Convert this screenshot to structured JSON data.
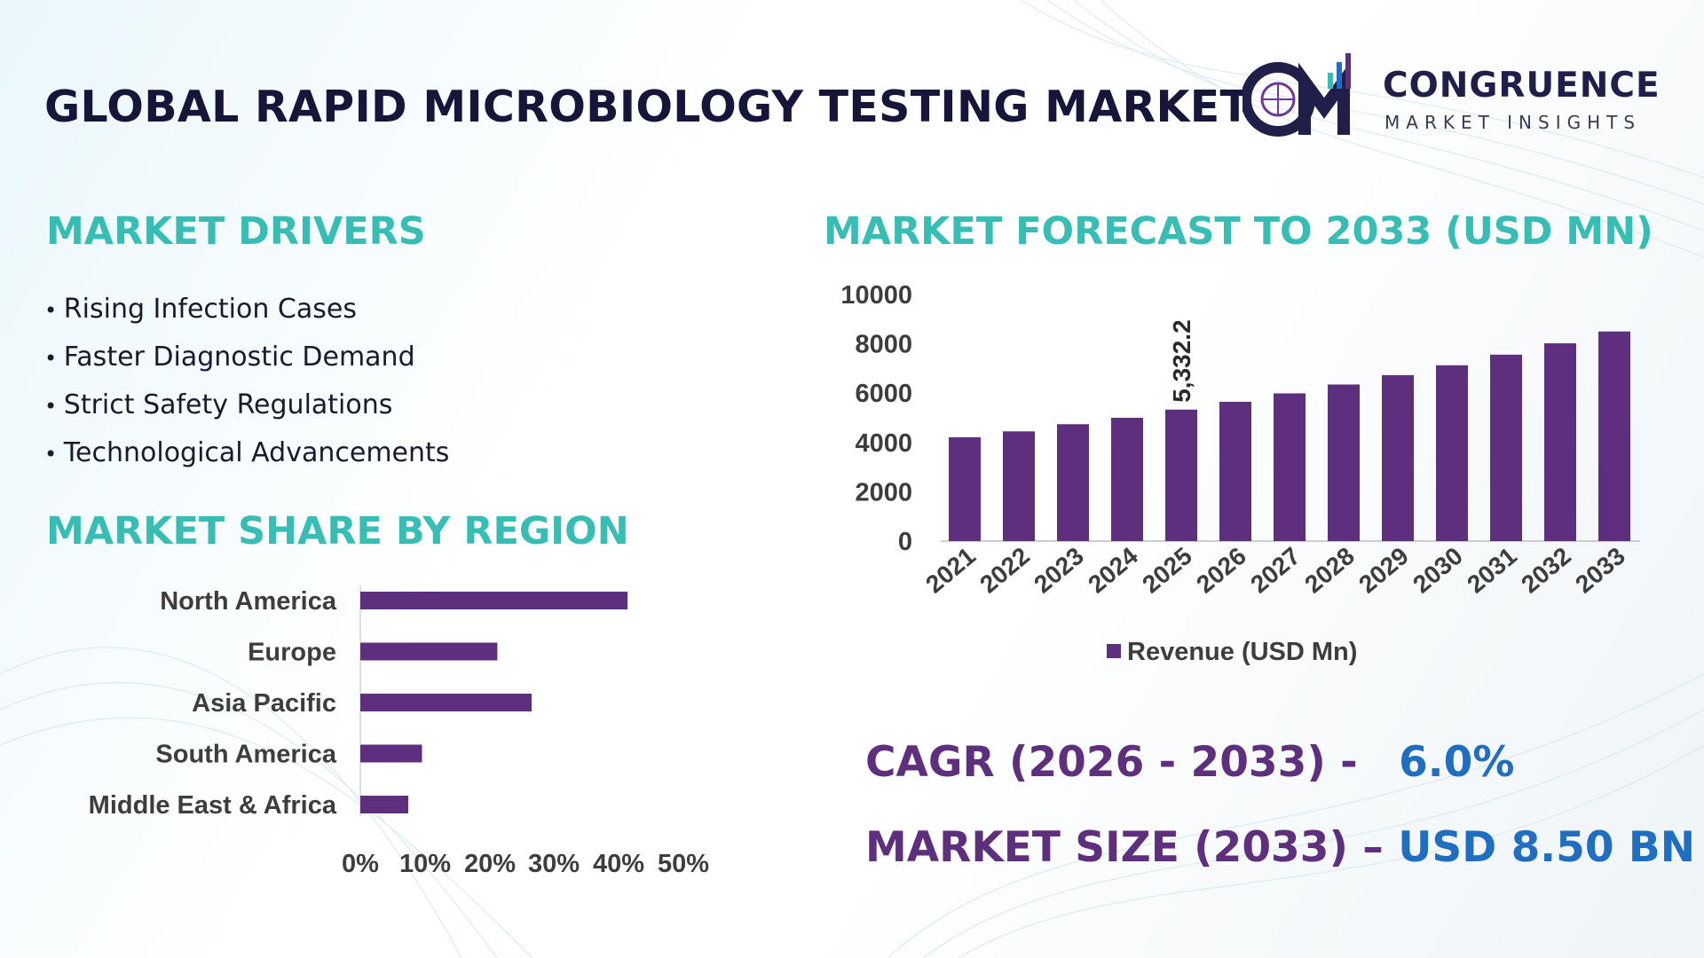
{
  "header": {
    "title": "GLOBAL RAPID MICROBIOLOGY TESTING MARKET",
    "logo_name": "CONGRUENCE",
    "logo_sub": "MARKET INSIGHTS"
  },
  "drivers": {
    "heading": "MARKET DRIVERS",
    "items": [
      "Rising Infection Cases",
      "Faster Diagnostic Demand",
      "Strict Safety Regulations",
      "Technological Advancements"
    ]
  },
  "kpis": {
    "cagr_label": "CAGR (2026 - 2033) -",
    "cagr_value": "6.0%",
    "size_label": "MARKET SIZE (2033) –",
    "size_value": "USD 8.50 BN"
  },
  "colors": {
    "bar": "#5d2f7d",
    "heading": "#37bdb4",
    "title": "#16163a",
    "value": "#1f6ec0",
    "axis_text": "#3d3d3d"
  },
  "chart_data": [
    {
      "type": "bar",
      "orientation": "horizontal",
      "title": "MARKET SHARE BY REGION",
      "categories": [
        "North America",
        "Europe",
        "Asia Pacific",
        "South America",
        "Middle East & Africa"
      ],
      "values": [
        39,
        20,
        25,
        9,
        7
      ],
      "unit": "%",
      "xlim": [
        0,
        50
      ],
      "x_ticks": [
        "0%",
        "10%",
        "20%",
        "30%",
        "40%",
        "50%"
      ],
      "grid": false,
      "legend": "none"
    },
    {
      "type": "bar",
      "orientation": "vertical",
      "title": "MARKET FORECAST TO 2033 (USD MN)",
      "categories": [
        "2021",
        "2022",
        "2023",
        "2024",
        "2025",
        "2026",
        "2027",
        "2028",
        "2029",
        "2030",
        "2031",
        "2032",
        "2033"
      ],
      "series": [
        {
          "name": "Revenue (USD Mn)",
          "values": [
            4210,
            4450,
            4740,
            5000,
            5332.2,
            5650,
            5990,
            6350,
            6730,
            7130,
            7560,
            8020,
            8500
          ]
        }
      ],
      "data_labels": [
        {
          "category": "2025",
          "text": "5,332.2"
        }
      ],
      "ylim": [
        0,
        10000
      ],
      "y_ticks": [
        "0",
        "2000",
        "4000",
        "6000",
        "8000",
        "10000"
      ],
      "grid": false,
      "legend": "bottom-center"
    }
  ]
}
